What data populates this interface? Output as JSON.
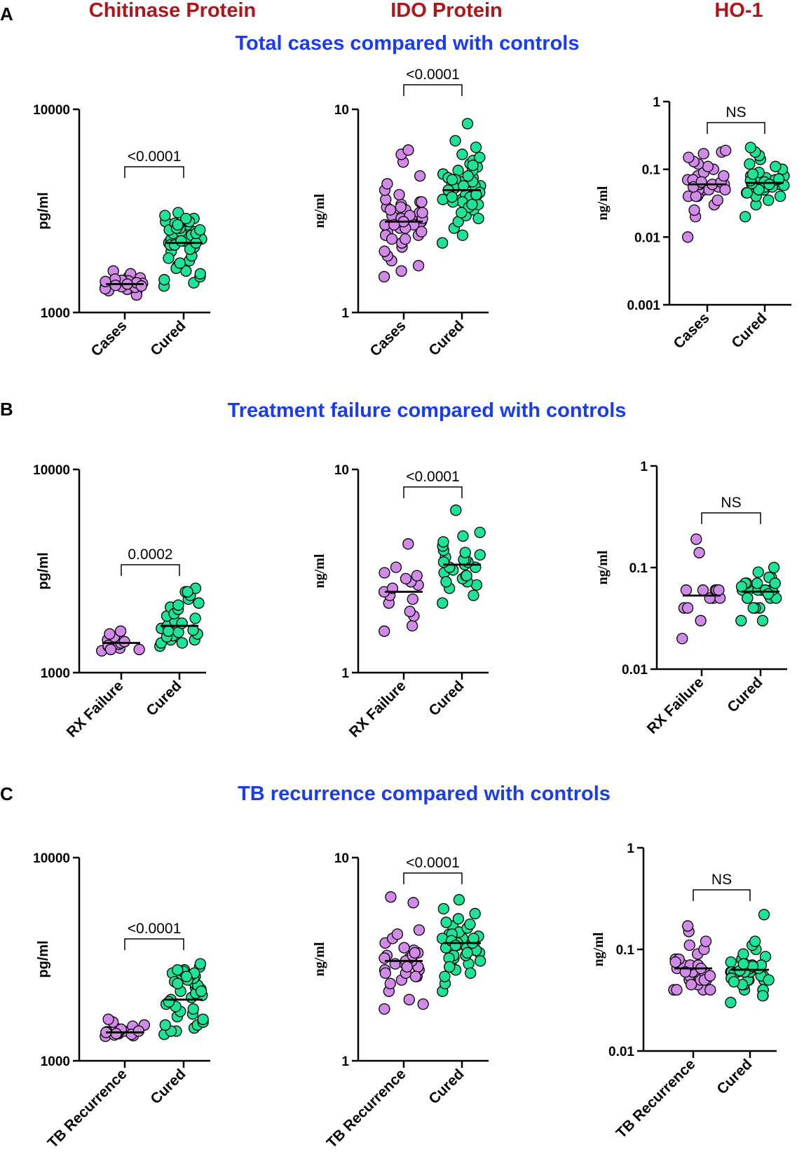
{
  "column_titles": [
    "Chitinase Protein",
    "IDO Protein",
    "HO-1"
  ],
  "column_title_color": "#b0151a",
  "section_title_color": "#1a3cf0",
  "sections": [
    {
      "letter": "A",
      "title": "Total cases compared with controls"
    },
    {
      "letter": "B",
      "title": "Treatment failure compared with controls"
    },
    {
      "letter": "C",
      "title": "TB recurrence compared with controls"
    }
  ],
  "colors": {
    "group1": "#d28ae8",
    "group2": "#1de396",
    "stroke": "#000000"
  },
  "chart_data": [
    {
      "type": "scatter",
      "panel": "A",
      "column": 0,
      "ylabel": "pg/ml",
      "scale": "log",
      "ylim": [
        1000,
        10000
      ],
      "yticks": [
        1000,
        10000
      ],
      "ytick_labels": [
        "1000",
        "10000"
      ],
      "categories": [
        "Cases",
        "Cured"
      ],
      "medians": [
        1380,
        2200
      ],
      "p_label": "<0.0001",
      "series": [
        {
          "name": "Cases",
          "values": [
            1320,
            1350,
            1380,
            1400,
            1420,
            1450,
            1480,
            1500,
            1550,
            1600,
            1360,
            1390,
            1410,
            1430,
            1300,
            1280,
            1250,
            1220,
            1370,
            1390,
            1340,
            1440,
            1460,
            1330,
            1310,
            1400,
            1380,
            1420,
            1360,
            1350
          ]
        },
        {
          "name": "Cured",
          "values": [
            1350,
            1400,
            1450,
            1500,
            1550,
            1600,
            1700,
            1800,
            1900,
            2000,
            2100,
            2200,
            2300,
            2400,
            2500,
            2600,
            2700,
            2800,
            2900,
            3000,
            3100,
            2200,
            2250,
            2350,
            2450,
            2550,
            2650,
            2750,
            2150,
            2050,
            2300,
            2400,
            2500,
            2600,
            2700,
            1650,
            1750,
            1850,
            2500,
            2600,
            2700,
            2800,
            2900,
            2400,
            2300,
            2200,
            2150,
            2250,
            2450,
            2550
          ]
        }
      ]
    },
    {
      "type": "scatter",
      "panel": "A",
      "column": 1,
      "ylabel": "ng/ml",
      "scale": "log",
      "ylim": [
        1,
        10
      ],
      "yticks": [
        1,
        10
      ],
      "ytick_labels": [
        "1",
        "10"
      ],
      "categories": [
        "Cases",
        "Cured"
      ],
      "medians": [
        2.8,
        4.0
      ],
      "p_label": "<0.0001",
      "series": [
        {
          "name": "Cases",
          "values": [
            1.5,
            1.6,
            1.7,
            1.8,
            1.9,
            2.0,
            2.1,
            2.2,
            2.3,
            2.4,
            2.5,
            2.6,
            2.7,
            2.8,
            2.9,
            3.0,
            3.1,
            3.2,
            3.3,
            3.4,
            3.5,
            3.6,
            3.8,
            4.0,
            4.3,
            4.7,
            5.5,
            6.0,
            6.3,
            2.8,
            2.9,
            3.0,
            2.7,
            2.6,
            2.5,
            3.1,
            3.2,
            2.4,
            2.3,
            2.9,
            3.0,
            2.8,
            2.7,
            3.3,
            3.5
          ]
        },
        {
          "name": "Cured",
          "values": [
            2.2,
            2.4,
            2.6,
            2.8,
            3.0,
            3.2,
            3.4,
            3.6,
            3.8,
            4.0,
            4.2,
            4.4,
            4.6,
            4.8,
            5.0,
            5.2,
            5.4,
            5.6,
            5.8,
            6.0,
            6.5,
            7.0,
            8.5,
            3.9,
            4.1,
            4.3,
            4.5,
            3.7,
            3.5,
            3.3,
            4.0,
            4.2,
            3.8,
            3.6,
            4.4,
            4.6,
            5.0,
            3.1,
            2.9,
            3.4,
            4.1,
            3.9,
            4.7,
            5.3,
            4.0,
            3.8,
            4.2,
            4.5,
            3.5,
            3.7
          ]
        }
      ]
    },
    {
      "type": "scatter",
      "panel": "A",
      "column": 2,
      "ylabel": "ng/ml",
      "scale": "log",
      "ylim": [
        0.001,
        1
      ],
      "yticks": [
        0.001,
        0.01,
        0.1,
        1
      ],
      "ytick_labels": [
        "0.001",
        "0.01",
        "0.1",
        "1"
      ],
      "categories": [
        "Cases",
        "Cured"
      ],
      "medians": [
        0.06,
        0.063
      ],
      "p_label": "NS",
      "series": [
        {
          "name": "Cases",
          "values": [
            0.01,
            0.02,
            0.025,
            0.03,
            0.035,
            0.04,
            0.04,
            0.045,
            0.05,
            0.05,
            0.05,
            0.055,
            0.06,
            0.06,
            0.06,
            0.065,
            0.07,
            0.07,
            0.08,
            0.08,
            0.09,
            0.1,
            0.11,
            0.12,
            0.13,
            0.15,
            0.17,
            0.18,
            0.19,
            0.05,
            0.06,
            0.07,
            0.04,
            0.055,
            0.065
          ]
        },
        {
          "name": "Cured",
          "values": [
            0.02,
            0.03,
            0.035,
            0.04,
            0.04,
            0.045,
            0.05,
            0.05,
            0.05,
            0.055,
            0.06,
            0.06,
            0.06,
            0.065,
            0.065,
            0.07,
            0.07,
            0.075,
            0.08,
            0.08,
            0.09,
            0.1,
            0.11,
            0.12,
            0.14,
            0.16,
            0.18,
            0.21,
            0.06,
            0.055,
            0.065,
            0.07,
            0.05,
            0.06,
            0.062,
            0.058,
            0.068,
            0.072,
            0.045,
            0.085
          ]
        }
      ]
    },
    {
      "type": "scatter",
      "panel": "B",
      "column": 0,
      "ylabel": "pg/ml",
      "scale": "log",
      "ylim": [
        1000,
        10000
      ],
      "yticks": [
        1000,
        10000
      ],
      "ytick_labels": [
        "1000",
        "10000"
      ],
      "categories": [
        "RX Failure",
        "Cured"
      ],
      "medians": [
        1400,
        1700
      ],
      "p_label": "0.0002",
      "series": [
        {
          "name": "RX Failure",
          "values": [
            1280,
            1300,
            1320,
            1350,
            1380,
            1400,
            1420,
            1450,
            1500,
            1550,
            1600,
            1360,
            1300
          ]
        },
        {
          "name": "Cured",
          "values": [
            1350,
            1400,
            1450,
            1500,
            1550,
            1600,
            1650,
            1700,
            1800,
            1900,
            2000,
            2100,
            2200,
            2300,
            2400,
            2500,
            2600,
            1450,
            1520,
            1580,
            1620,
            1750,
            1850,
            1950,
            2050,
            2150,
            1500,
            1400,
            1600,
            2500
          ]
        }
      ]
    },
    {
      "type": "scatter",
      "panel": "B",
      "column": 1,
      "ylabel": "ng/ml",
      "scale": "log",
      "ylim": [
        1,
        10
      ],
      "yticks": [
        1,
        10
      ],
      "ytick_labels": [
        "1",
        "10"
      ],
      "categories": [
        "RX Failure",
        "Cured"
      ],
      "medians": [
        2.5,
        3.4
      ],
      "p_label": "<0.0001",
      "series": [
        {
          "name": "RX Failure",
          "values": [
            1.6,
            1.7,
            1.9,
            2.0,
            2.2,
            2.3,
            2.4,
            2.5,
            2.6,
            2.7,
            2.8,
            2.9,
            3.0,
            3.1,
            3.3,
            4.3
          ]
        },
        {
          "name": "Cured",
          "values": [
            2.2,
            2.4,
            2.6,
            2.7,
            2.8,
            2.9,
            3.0,
            3.1,
            3.2,
            3.3,
            3.4,
            3.5,
            3.6,
            3.7,
            3.8,
            4.0,
            4.2,
            4.4,
            4.7,
            4.9,
            6.3,
            3.3,
            3.5,
            3.0,
            3.6,
            3.9,
            2.8
          ]
        }
      ]
    },
    {
      "type": "scatter",
      "panel": "B",
      "column": 2,
      "ylabel": "ng/ml",
      "scale": "log",
      "ylim": [
        0.01,
        1
      ],
      "yticks": [
        0.01,
        0.1,
        1
      ],
      "ytick_labels": [
        "0.01",
        "0.1",
        "1"
      ],
      "categories": [
        "RX Failure",
        "Cured"
      ],
      "medians": [
        0.053,
        0.058
      ],
      "p_label": "NS",
      "series": [
        {
          "name": "RX Failure",
          "values": [
            0.02,
            0.03,
            0.04,
            0.04,
            0.05,
            0.05,
            0.05,
            0.06,
            0.06,
            0.06,
            0.06,
            0.06,
            0.14,
            0.19
          ]
        },
        {
          "name": "Cured",
          "values": [
            0.03,
            0.03,
            0.04,
            0.04,
            0.04,
            0.05,
            0.05,
            0.05,
            0.05,
            0.06,
            0.06,
            0.06,
            0.06,
            0.06,
            0.07,
            0.07,
            0.07,
            0.08,
            0.08,
            0.09,
            0.1,
            0.06,
            0.05,
            0.07,
            0.06,
            0.055,
            0.065
          ]
        }
      ]
    },
    {
      "type": "scatter",
      "panel": "C",
      "column": 0,
      "ylabel": "pg/ml",
      "scale": "log",
      "ylim": [
        1000,
        10000
      ],
      "yticks": [
        1000,
        10000
      ],
      "ytick_labels": [
        "1000",
        "10000"
      ],
      "categories": [
        "TB Recurrence",
        "Cured"
      ],
      "medians": [
        1380,
        2000
      ],
      "p_label": "<0.0001",
      "series": [
        {
          "name": "TB Recurrence",
          "values": [
            1320,
            1340,
            1360,
            1380,
            1400,
            1420,
            1450,
            1480,
            1500,
            1550,
            1600,
            1370,
            1390,
            1330,
            1350,
            1410,
            1430,
            1360,
            1380,
            1400
          ]
        },
        {
          "name": "Cured",
          "values": [
            1350,
            1400,
            1450,
            1500,
            1550,
            1600,
            1700,
            1800,
            1900,
            2000,
            2100,
            2200,
            2300,
            2400,
            2500,
            2600,
            2700,
            2800,
            2900,
            3000,
            1650,
            1750,
            1850,
            1950,
            2050,
            2150,
            2250,
            2350,
            2450,
            2550,
            2650,
            2750,
            1400,
            1500,
            2700,
            2800,
            2500,
            2400,
            2600,
            2200
          ]
        }
      ]
    },
    {
      "type": "scatter",
      "panel": "C",
      "column": 1,
      "ylabel": "ng/ml",
      "scale": "log",
      "ylim": [
        1,
        10
      ],
      "yticks": [
        1,
        10
      ],
      "ytick_labels": [
        "1",
        "10"
      ],
      "categories": [
        "TB Recurrence",
        "Cured"
      ],
      "medians": [
        3.1,
        3.8
      ],
      "p_label": "<0.0001",
      "series": [
        {
          "name": "TB Recurrence",
          "values": [
            1.8,
            1.9,
            2.0,
            2.2,
            2.4,
            2.5,
            2.6,
            2.7,
            2.8,
            2.9,
            3.0,
            3.1,
            3.2,
            3.3,
            3.4,
            3.5,
            3.6,
            3.8,
            4.0,
            4.2,
            4.4,
            6.0,
            6.4,
            3.0,
            3.1,
            2.9,
            3.2,
            2.8,
            3.3,
            2.7,
            3.4,
            2.6
          ]
        },
        {
          "name": "Cured",
          "values": [
            2.2,
            2.4,
            2.6,
            2.8,
            3.0,
            3.1,
            3.2,
            3.3,
            3.4,
            3.5,
            3.6,
            3.7,
            3.8,
            3.9,
            4.0,
            4.2,
            4.4,
            4.6,
            4.8,
            5.0,
            5.3,
            5.6,
            6.2,
            3.7,
            3.9,
            4.1,
            3.5,
            3.3,
            3.6,
            3.8,
            4.0,
            4.3,
            4.5,
            3.4,
            3.2,
            2.9,
            3.1,
            2.7,
            4.7,
            3.8,
            3.6,
            4.0,
            4.2,
            3.9,
            3.7
          ]
        }
      ]
    },
    {
      "type": "scatter",
      "panel": "C",
      "column": 2,
      "ylabel": "ng/ml",
      "scale": "log",
      "ylim": [
        0.01,
        1
      ],
      "yticks": [
        0.01,
        0.1,
        1
      ],
      "ytick_labels": [
        "0.01",
        "0.1",
        "1"
      ],
      "categories": [
        "TB Recurrence",
        "Cured"
      ],
      "medians": [
        0.065,
        0.063
      ],
      "p_label": "NS",
      "series": [
        {
          "name": "TB Recurrence",
          "values": [
            0.04,
            0.04,
            0.04,
            0.045,
            0.05,
            0.05,
            0.05,
            0.055,
            0.06,
            0.06,
            0.06,
            0.065,
            0.07,
            0.07,
            0.08,
            0.08,
            0.09,
            0.1,
            0.11,
            0.12,
            0.15,
            0.17,
            0.06,
            0.05,
            0.07,
            0.065,
            0.055,
            0.045,
            0.04,
            0.075
          ]
        },
        {
          "name": "Cured",
          "values": [
            0.03,
            0.035,
            0.04,
            0.04,
            0.045,
            0.05,
            0.05,
            0.05,
            0.055,
            0.06,
            0.06,
            0.06,
            0.06,
            0.065,
            0.065,
            0.07,
            0.07,
            0.075,
            0.08,
            0.085,
            0.09,
            0.1,
            0.11,
            0.12,
            0.22,
            0.06,
            0.055,
            0.065,
            0.05,
            0.07,
            0.045,
            0.06,
            0.058,
            0.062,
            0.068,
            0.052,
            0.072,
            0.048,
            0.04,
            0.035
          ]
        }
      ]
    }
  ]
}
